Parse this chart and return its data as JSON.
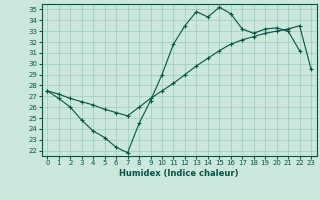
{
  "xlabel": "Humidex (Indice chaleur)",
  "bg_color": "#cce8dd",
  "line_color": "#005544",
  "grid_color": "#99ccbb",
  "xlim": [
    -0.5,
    23.5
  ],
  "ylim": [
    21.5,
    35.5
  ],
  "xticks": [
    0,
    1,
    2,
    3,
    4,
    5,
    6,
    7,
    8,
    9,
    10,
    11,
    12,
    13,
    14,
    15,
    16,
    17,
    18,
    19,
    20,
    21,
    22,
    23
  ],
  "yticks": [
    22,
    23,
    24,
    25,
    26,
    27,
    28,
    29,
    30,
    31,
    32,
    33,
    34,
    35
  ],
  "curve1_x": [
    0,
    1,
    2,
    3,
    4,
    5,
    6,
    7,
    8,
    9,
    10,
    11,
    12,
    13,
    14,
    15,
    16,
    17,
    18,
    19,
    20,
    21,
    22
  ],
  "curve1_y": [
    27.5,
    26.8,
    26.0,
    24.8,
    23.8,
    23.2,
    22.3,
    21.8,
    24.5,
    26.6,
    29.0,
    31.8,
    33.5,
    34.8,
    34.3,
    35.2,
    34.6,
    33.2,
    32.8,
    33.2,
    33.3,
    33.0,
    31.2
  ],
  "curve2_x": [
    0,
    1,
    2,
    3,
    4,
    5,
    6,
    7,
    8,
    9,
    10,
    11,
    12,
    13,
    14,
    15,
    16,
    17,
    18,
    19,
    20,
    21,
    22,
    23
  ],
  "curve2_y": [
    27.5,
    27.2,
    26.8,
    26.5,
    26.2,
    25.8,
    25.5,
    25.2,
    26.0,
    26.8,
    27.5,
    28.2,
    29.0,
    29.8,
    30.5,
    31.2,
    31.8,
    32.2,
    32.5,
    32.8,
    33.0,
    33.2,
    33.5,
    29.5
  ]
}
